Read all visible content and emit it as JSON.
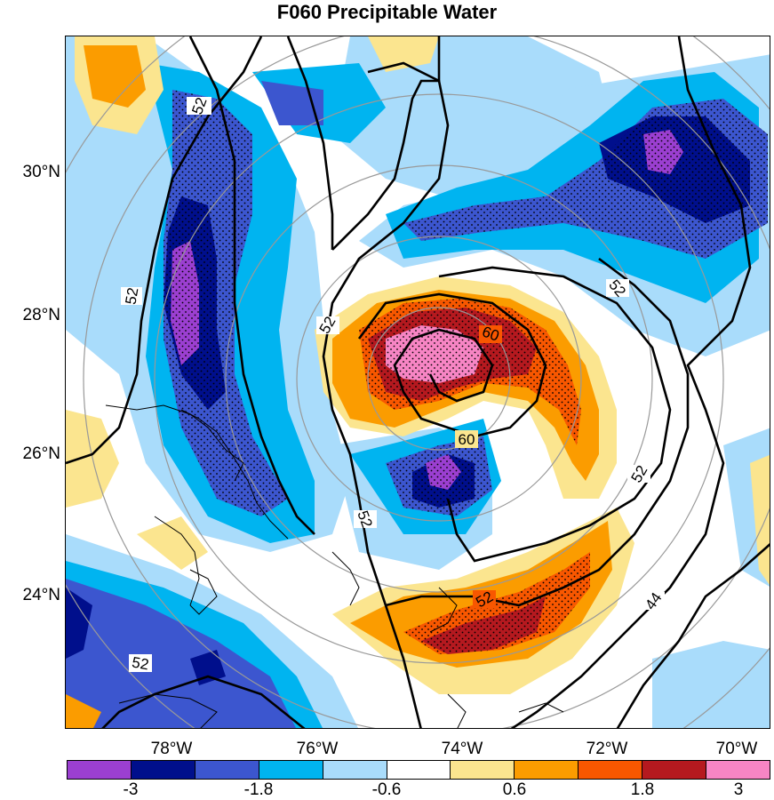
{
  "title": "F060 Precipitable Water",
  "lat_labels": [
    "30°N",
    "28°N",
    "26°N",
    "24°N"
  ],
  "lon_labels": [
    "78°W",
    "76°W",
    "74°W",
    "72°W",
    "70°W"
  ],
  "colorbar": {
    "colors": [
      "#9b3fd1",
      "#000f8c",
      "#3c56cf",
      "#00b4f0",
      "#a9dcfb",
      "#ffffff",
      "#fbe58f",
      "#fb9c00",
      "#f85700",
      "#b5191f",
      "#f785c4"
    ],
    "labels": [
      "-3",
      "-1.8",
      "-0.6",
      "0.6",
      "1.8",
      "3"
    ]
  },
  "contour_labels": [
    "52",
    "52",
    "52",
    "52",
    "52",
    "52",
    "52",
    "60",
    "60",
    "52",
    "44"
  ]
}
